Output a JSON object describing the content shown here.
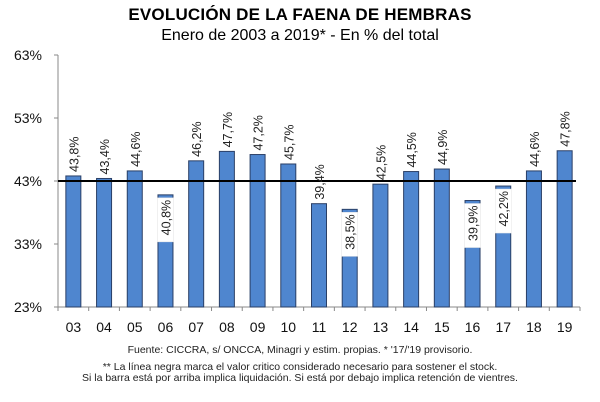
{
  "chart_data": {
    "type": "bar",
    "title": "EVOLUCIÓN DE LA FAENA DE HEMBRAS",
    "subtitle": "Enero de 2003 a 2019* - En % del total",
    "xlabel": "",
    "ylabel": "",
    "categories": [
      "03",
      "04",
      "05",
      "06",
      "07",
      "08",
      "09",
      "10",
      "11",
      "12",
      "13",
      "14",
      "15",
      "16",
      "17",
      "18",
      "19"
    ],
    "values": [
      43.8,
      43.4,
      44.6,
      40.8,
      46.2,
      47.7,
      47.2,
      45.7,
      39.4,
      38.5,
      42.5,
      44.5,
      44.9,
      39.9,
      42.2,
      44.6,
      47.8
    ],
    "data_labels": [
      "43,8%",
      "43,4%",
      "44,6%",
      "40,8%",
      "46,2%",
      "47,7%",
      "47,2%",
      "45,7%",
      "39,4%",
      "38,5%",
      "42,5%",
      "44,5%",
      "44,9%",
      "39,9%",
      "42,2%",
      "44,6%",
      "47,8%"
    ],
    "label_inside": [
      false,
      false,
      false,
      true,
      false,
      false,
      false,
      false,
      false,
      true,
      false,
      false,
      false,
      true,
      true,
      false,
      false
    ],
    "ylim": [
      23,
      63
    ],
    "yticks": [
      23,
      33,
      43,
      53,
      63
    ],
    "ytick_labels": [
      "23%",
      "33%",
      "43%",
      "53%",
      "63%"
    ],
    "reference_line": {
      "value": 43,
      "color": "#000000"
    },
    "grid": false,
    "legend": "none",
    "bar_color": "#4f86cf",
    "bar_edge_color": "#2a3f66"
  },
  "footer": {
    "source": "Fuente: CICCRA, s/ ONCCA, Minagri y estim. propias. * '17/'19  provisorio.",
    "note_line1": "** La línea negra marca el valor critico considerado necesario para sostener el stock.",
    "note_line2": "Si la barra está por arriba implica liquidación. Si está por debajo implica retención de vientres."
  }
}
